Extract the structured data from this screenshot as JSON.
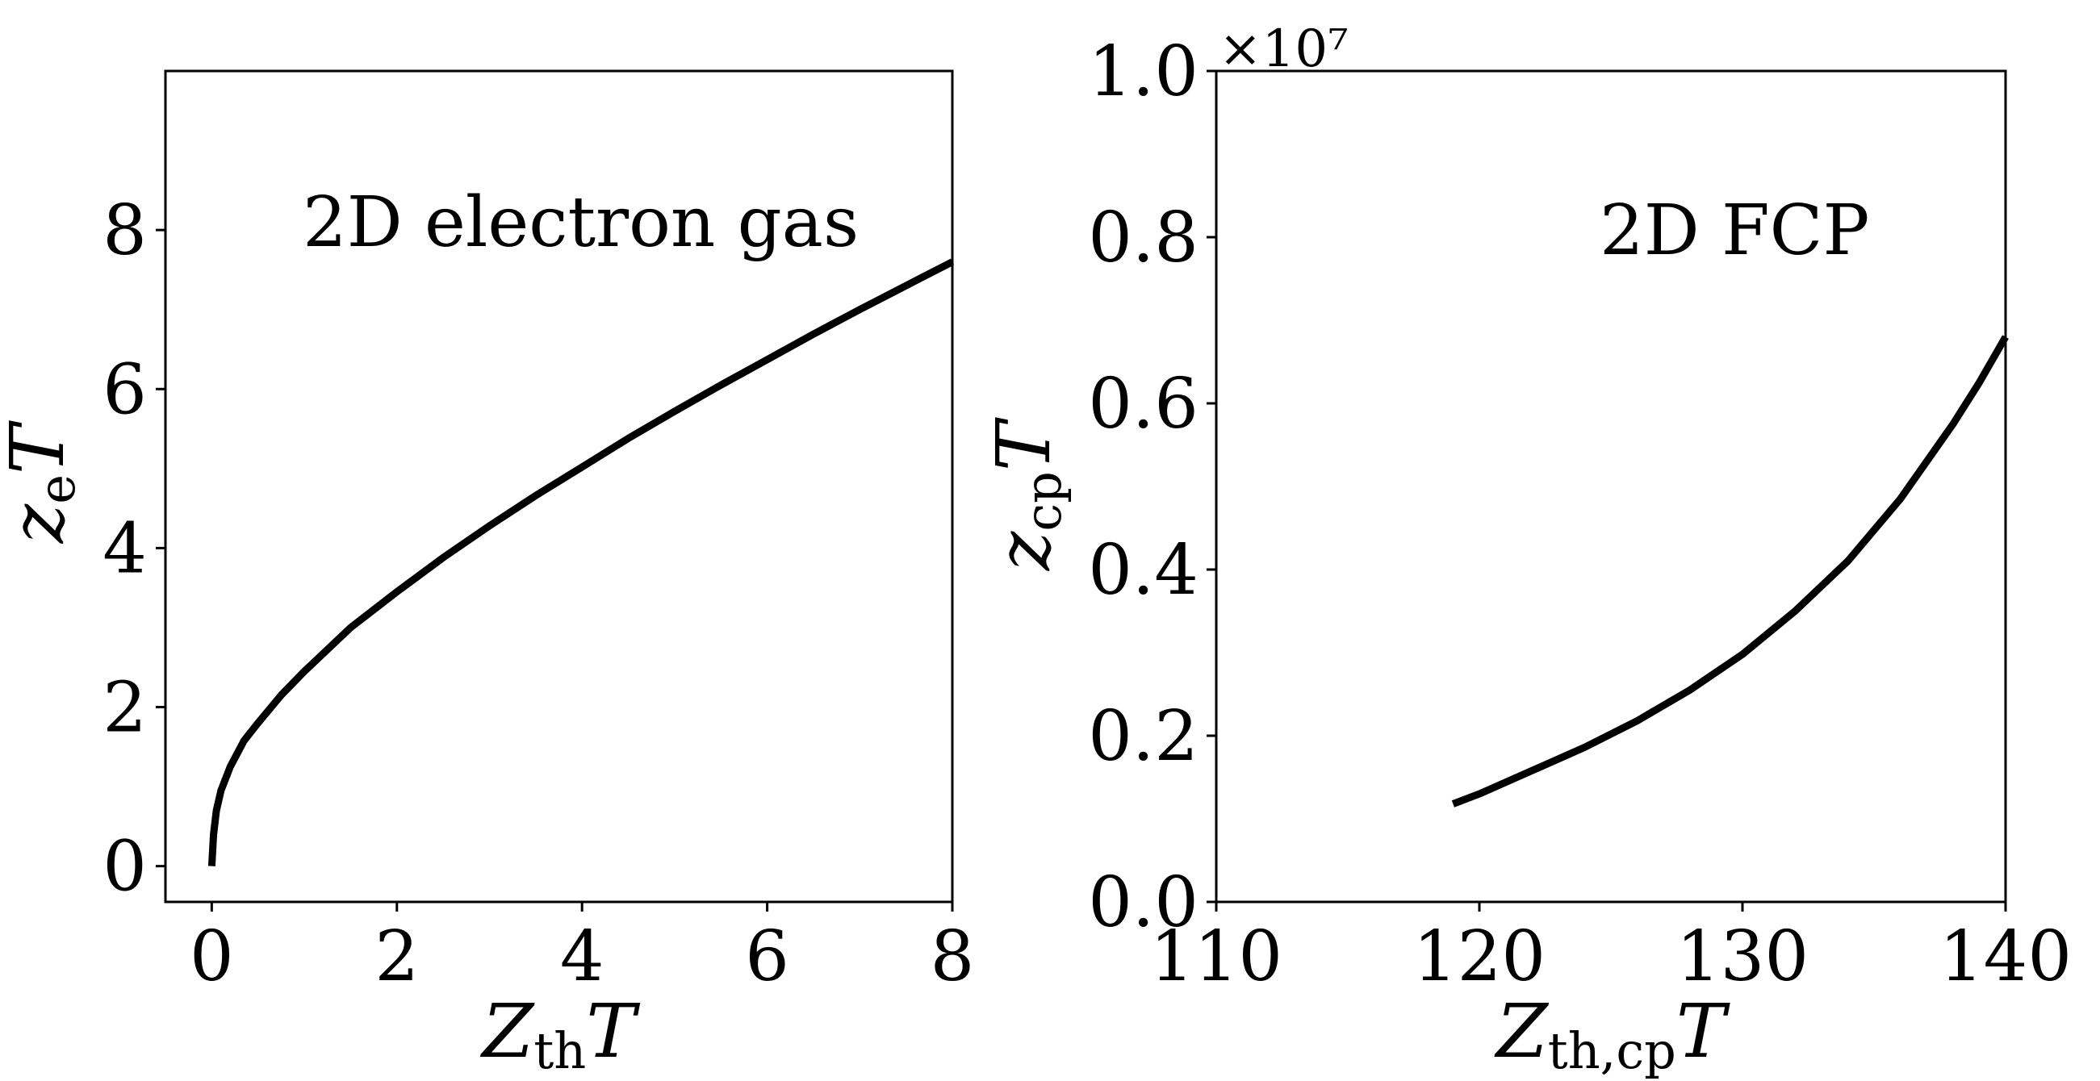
{
  "chart_data": [
    {
      "type": "line",
      "title": "",
      "annotation": "2D electron gas",
      "xlabel": {
        "main": "Z",
        "sub": "th",
        "suffix": "T"
      },
      "ylabel": {
        "main": "z",
        "sub": "e",
        "suffix": "T"
      },
      "xlim": [
        -0.5,
        8
      ],
      "ylim": [
        -0.45,
        10
      ],
      "xticks": [
        0,
        2,
        4,
        6,
        8
      ],
      "xtick_labels": [
        "0",
        "2",
        "4",
        "6",
        "8"
      ],
      "yticks": [
        0,
        2,
        4,
        6,
        8
      ],
      "ytick_labels": [
        "0",
        "2",
        "4",
        "6",
        "8"
      ],
      "grid": false,
      "series": [
        {
          "color": "#000000",
          "x": [
            0,
            0.02,
            0.05,
            0.1,
            0.2,
            0.35,
            0.5,
            0.75,
            1.0,
            1.5,
            2.0,
            2.5,
            3.0,
            3.5,
            4.0,
            4.5,
            5.0,
            5.5,
            6.0,
            6.5,
            7.0,
            7.5,
            8.0
          ],
          "y": [
            0,
            0.4,
            0.7,
            0.95,
            1.25,
            1.58,
            1.8,
            2.15,
            2.45,
            3.0,
            3.45,
            3.88,
            4.28,
            4.66,
            5.02,
            5.38,
            5.72,
            6.05,
            6.37,
            6.69,
            7.0,
            7.3,
            7.6
          ]
        }
      ]
    },
    {
      "type": "line",
      "title": "",
      "annotation": "2D FCP",
      "xlabel": {
        "main": "Z",
        "sub": "th,cp",
        "suffix": "T"
      },
      "ylabel": {
        "main": "z",
        "sub": "cp",
        "suffix": "T"
      },
      "xlim": [
        110,
        140
      ],
      "ylim": [
        0,
        1.0
      ],
      "y_offset_label": "×10⁷",
      "xticks": [
        110,
        120,
        130,
        140
      ],
      "xtick_labels": [
        "110",
        "120",
        "130",
        "140"
      ],
      "yticks": [
        0.0,
        0.2,
        0.4,
        0.6,
        0.8,
        1.0
      ],
      "ytick_labels": [
        "0.0",
        "0.2",
        "0.4",
        "0.6",
        "0.8",
        "1.0"
      ],
      "grid": false,
      "series": [
        {
          "color": "#000000",
          "x": [
            119,
            120,
            122,
            124,
            126,
            128,
            130,
            132,
            134,
            136,
            138,
            139,
            140
          ],
          "y": [
            0.118,
            0.13,
            0.158,
            0.186,
            0.218,
            0.255,
            0.298,
            0.35,
            0.41,
            0.485,
            0.575,
            0.625,
            0.68
          ]
        }
      ]
    }
  ]
}
